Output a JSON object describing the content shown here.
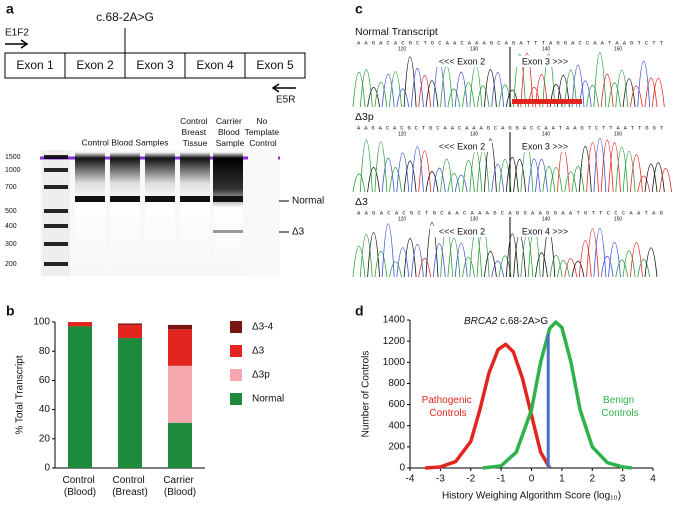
{
  "panel_labels": [
    "a",
    "b",
    "c",
    "d"
  ],
  "gene_diagram": {
    "variant": "c.68-2A>G",
    "forward_primer": "E1F2",
    "reverse_primer": "E5R",
    "exons": [
      "Exon 1",
      "Exon 2",
      "Exon 3",
      "Exon 4",
      "Exon 5"
    ]
  },
  "gel": {
    "ladder": [
      "1500",
      "1000",
      "700",
      "500",
      "400",
      "300",
      "200"
    ],
    "lanes": [
      "Control Blood Samples",
      "Control Breast Tissue",
      "Carrier Blood Sample",
      "No Template Control"
    ],
    "bands": [
      "Normal",
      "Δ3"
    ]
  },
  "chromatograms": [
    {
      "title": "Normal Transcript",
      "sequence": "AAGACACGCTGCAACAAAGCAGATTTAGGACCAATAAGTCTT",
      "positions": [
        "120",
        "130",
        "140",
        "150"
      ],
      "left": "<<< Exon 2",
      "right": "Exon 3 >>>"
    },
    {
      "title": "Δ3p",
      "sequence": "AAGACACGCTGCAACAAAGCAGGACCAATAAGTCTTAATTGGT",
      "positions": [
        "120",
        "130",
        "140",
        "150"
      ],
      "left": "<<< Exon 2",
      "right": "Exon 3 >>>"
    },
    {
      "title": "Δ3",
      "sequence": "AAGACACGCTGCAACAAAGCAGGAAGGAATGTTCCCAATAG",
      "positions": [
        "120",
        "130",
        "140",
        "150"
      ],
      "left": "<<< Exon 2",
      "right": "Exon 4 >>>"
    }
  ],
  "chart_data": [
    {
      "type": "stacked-bar",
      "ylabel": "% Total Transcript",
      "categories": [
        "Control (Blood)",
        "Control (Breast)",
        "Carrier (Blood)"
      ],
      "series": [
        {
          "name": "Normal",
          "color": "#1e8a3c",
          "values": [
            97,
            89,
            31
          ]
        },
        {
          "name": "Δ3p",
          "color": "#f7a8ae",
          "values": [
            0,
            0,
            39
          ]
        },
        {
          "name": "Δ3",
          "color": "#e2261f",
          "values": [
            3,
            9,
            25
          ]
        },
        {
          "name": "Δ3-4",
          "color": "#7a1515",
          "values": [
            0,
            1,
            3
          ]
        }
      ],
      "ylim": [
        0,
        100
      ],
      "yticks": [
        0,
        20,
        40,
        60,
        80,
        100
      ]
    },
    {
      "type": "line",
      "xlabel": "History Weighing Algorithm Score (log₁₀)",
      "ylabel": "Number of Controls",
      "annotation": {
        "text": "BRCA2 c.68-2A>G",
        "x": 0.55,
        "color": "#4a6fc8"
      },
      "series": [
        {
          "name": "Pathogenic Controls",
          "color": "#e2261f",
          "x": [
            -3.5,
            -3,
            -2.5,
            -2,
            -1.7,
            -1.4,
            -1.1,
            -0.85,
            -0.6,
            -0.3,
            0,
            0.3,
            0.6
          ],
          "values": [
            0,
            10,
            60,
            250,
            550,
            900,
            1120,
            1170,
            1100,
            850,
            500,
            150,
            0
          ]
        },
        {
          "name": "Benign Controls",
          "color": "#2db34a",
          "x": [
            -1.6,
            -1,
            -0.5,
            0,
            0.3,
            0.6,
            0.8,
            1,
            1.3,
            1.6,
            2,
            2.5,
            3,
            3.3
          ],
          "values": [
            0,
            20,
            150,
            550,
            1000,
            1320,
            1380,
            1330,
            1000,
            550,
            200,
            50,
            10,
            0
          ]
        }
      ],
      "xlim": [
        -4,
        4
      ],
      "xticks": [
        -4,
        -3,
        -2,
        -1,
        0,
        1,
        2,
        3,
        4
      ],
      "ylim": [
        0,
        1400
      ],
      "yticks": [
        0,
        200,
        400,
        600,
        800,
        1000,
        1200,
        1400
      ]
    }
  ]
}
